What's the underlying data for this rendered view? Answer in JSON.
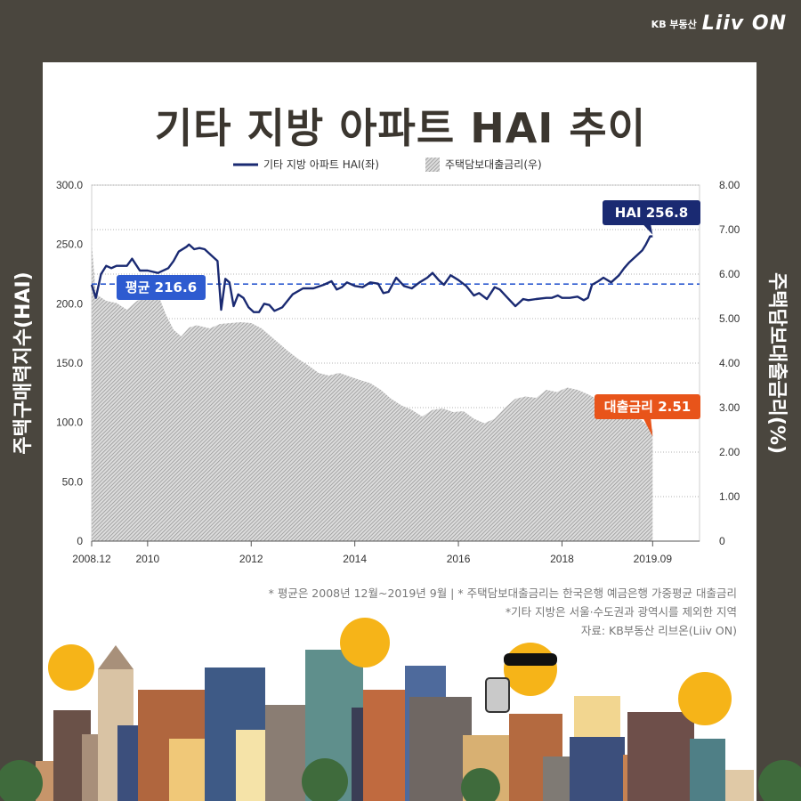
{
  "brand": {
    "kb": "KB 부동산",
    "logo": "Liiv ON"
  },
  "title": "기타 지방 아파트 HAI 추이",
  "left_axis_label": "주택구매력지수(HAI)",
  "right_axis_label": "주택담보대출금리(%)",
  "legend": {
    "hai": "기타 지방 아파트 HAI(좌)",
    "rate": "주택담보대출금리(우)"
  },
  "labels": {
    "avg": "평균 216.6",
    "hai_last": "HAI 256.8",
    "rate_last": "대출금리 2.51"
  },
  "notes": [
    "* 평균은 2008년 12월~2019년 9월  |  * 주택담보대출금리는 한국은행 예금은행 가중평균 대출금리",
    "*기타 지방은 서울·수도권과 광역시를 제외한 지역",
    "자료: KB부동산 리브온(Liiv ON)"
  ],
  "chart_data": {
    "type": "line",
    "x_tick_labels": [
      "2008.12",
      "2010",
      "2012",
      "2014",
      "2016",
      "2018",
      "2019.09"
    ],
    "left_ticks": [
      "0",
      "50.0",
      "100.0",
      "150.0",
      "200.0",
      "250.0",
      "300.0"
    ],
    "right_ticks": [
      "0",
      "1.00",
      "2.00",
      "3.00",
      "4.00",
      "5.00",
      "6.00",
      "7.00",
      "8.00"
    ],
    "ylim_left": [
      0,
      300
    ],
    "ylim_right": [
      0,
      8
    ],
    "average": 216.6,
    "colors": {
      "hai": "#1a2a72",
      "avg": "#2e5bd0",
      "rate": "#8a8a8a",
      "hai_badge": "#1a2a72",
      "rate_badge": "#e8541a"
    },
    "series": [
      {
        "name": "기타 지방 아파트 HAI(좌)",
        "axis": "left",
        "points": [
          [
            2008.92,
            216
          ],
          [
            2009.0,
            205
          ],
          [
            2009.1,
            225
          ],
          [
            2009.2,
            232
          ],
          [
            2009.3,
            230
          ],
          [
            2009.4,
            232
          ],
          [
            2009.6,
            232
          ],
          [
            2009.7,
            238
          ],
          [
            2009.85,
            228
          ],
          [
            2010.0,
            228
          ],
          [
            2010.2,
            226
          ],
          [
            2010.4,
            230
          ],
          [
            2010.5,
            236
          ],
          [
            2010.6,
            244
          ],
          [
            2010.75,
            248
          ],
          [
            2010.8,
            250
          ],
          [
            2010.9,
            246
          ],
          [
            2011.0,
            247
          ],
          [
            2011.1,
            246
          ],
          [
            2011.25,
            240
          ],
          [
            2011.35,
            236
          ],
          [
            2011.42,
            195
          ],
          [
            2011.5,
            221
          ],
          [
            2011.58,
            218
          ],
          [
            2011.66,
            198
          ],
          [
            2011.75,
            208
          ],
          [
            2011.85,
            205
          ],
          [
            2011.95,
            197
          ],
          [
            2012.05,
            193
          ],
          [
            2012.15,
            193
          ],
          [
            2012.25,
            200
          ],
          [
            2012.35,
            199
          ],
          [
            2012.45,
            194
          ],
          [
            2012.6,
            197
          ],
          [
            2012.8,
            208
          ],
          [
            2013.0,
            213
          ],
          [
            2013.2,
            213
          ],
          [
            2013.4,
            216
          ],
          [
            2013.55,
            219
          ],
          [
            2013.65,
            212
          ],
          [
            2013.75,
            214
          ],
          [
            2013.85,
            218
          ],
          [
            2014.0,
            215
          ],
          [
            2014.15,
            214
          ],
          [
            2014.3,
            218
          ],
          [
            2014.45,
            217
          ],
          [
            2014.55,
            209
          ],
          [
            2014.65,
            210
          ],
          [
            2014.8,
            222
          ],
          [
            2014.95,
            215
          ],
          [
            2015.1,
            213
          ],
          [
            2015.25,
            218
          ],
          [
            2015.4,
            222
          ],
          [
            2015.5,
            226
          ],
          [
            2015.62,
            220
          ],
          [
            2015.72,
            216
          ],
          [
            2015.85,
            224
          ],
          [
            2016.0,
            220
          ],
          [
            2016.15,
            215
          ],
          [
            2016.3,
            207
          ],
          [
            2016.4,
            209
          ],
          [
            2016.55,
            204
          ],
          [
            2016.7,
            214
          ],
          [
            2016.8,
            212
          ],
          [
            2016.95,
            205
          ],
          [
            2017.1,
            198
          ],
          [
            2017.25,
            204
          ],
          [
            2017.35,
            203
          ],
          [
            2017.5,
            204
          ],
          [
            2017.7,
            205
          ],
          [
            2017.8,
            205
          ],
          [
            2017.92,
            207
          ],
          [
            2018.0,
            205
          ],
          [
            2018.15,
            205
          ],
          [
            2018.3,
            206
          ],
          [
            2018.42,
            203
          ],
          [
            2018.5,
            205
          ],
          [
            2018.58,
            216
          ],
          [
            2018.7,
            219
          ],
          [
            2018.8,
            222
          ],
          [
            2018.95,
            218
          ],
          [
            2019.1,
            224
          ],
          [
            2019.2,
            230
          ],
          [
            2019.3,
            235
          ],
          [
            2019.45,
            241
          ],
          [
            2019.55,
            245
          ],
          [
            2019.62,
            250
          ],
          [
            2019.7,
            256.8
          ],
          [
            2019.75,
            256.8
          ]
        ]
      },
      {
        "name": "주택담보대출금리(우)",
        "axis": "right",
        "points": [
          [
            2008.92,
            6.7
          ],
          [
            2009.0,
            5.55
          ],
          [
            2009.2,
            5.4
          ],
          [
            2009.4,
            5.35
          ],
          [
            2009.6,
            5.2
          ],
          [
            2009.8,
            5.4
          ],
          [
            2010.0,
            5.5
          ],
          [
            2010.2,
            5.55
          ],
          [
            2010.35,
            5.1
          ],
          [
            2010.5,
            4.75
          ],
          [
            2010.65,
            4.6
          ],
          [
            2010.8,
            4.8
          ],
          [
            2010.95,
            4.85
          ],
          [
            2011.2,
            4.78
          ],
          [
            2011.4,
            4.88
          ],
          [
            2011.6,
            4.9
          ],
          [
            2011.8,
            4.92
          ],
          [
            2012.0,
            4.9
          ],
          [
            2012.2,
            4.78
          ],
          [
            2012.5,
            4.48
          ],
          [
            2012.7,
            4.28
          ],
          [
            2012.9,
            4.1
          ],
          [
            2013.1,
            3.95
          ],
          [
            2013.3,
            3.78
          ],
          [
            2013.5,
            3.72
          ],
          [
            2013.7,
            3.78
          ],
          [
            2013.9,
            3.7
          ],
          [
            2014.1,
            3.62
          ],
          [
            2014.3,
            3.55
          ],
          [
            2014.5,
            3.4
          ],
          [
            2014.7,
            3.2
          ],
          [
            2014.9,
            3.05
          ],
          [
            2015.1,
            2.95
          ],
          [
            2015.3,
            2.8
          ],
          [
            2015.5,
            2.95
          ],
          [
            2015.7,
            2.98
          ],
          [
            2015.9,
            2.9
          ],
          [
            2016.1,
            2.92
          ],
          [
            2016.3,
            2.75
          ],
          [
            2016.5,
            2.65
          ],
          [
            2016.7,
            2.75
          ],
          [
            2016.9,
            3.0
          ],
          [
            2017.1,
            3.2
          ],
          [
            2017.3,
            3.25
          ],
          [
            2017.5,
            3.22
          ],
          [
            2017.7,
            3.4
          ],
          [
            2017.9,
            3.35
          ],
          [
            2018.1,
            3.45
          ],
          [
            2018.3,
            3.4
          ],
          [
            2018.5,
            3.3
          ],
          [
            2018.7,
            3.18
          ],
          [
            2018.9,
            3.12
          ],
          [
            2019.1,
            3.0
          ],
          [
            2019.3,
            2.9
          ],
          [
            2019.5,
            2.75
          ],
          [
            2019.75,
            2.51
          ]
        ]
      }
    ]
  }
}
